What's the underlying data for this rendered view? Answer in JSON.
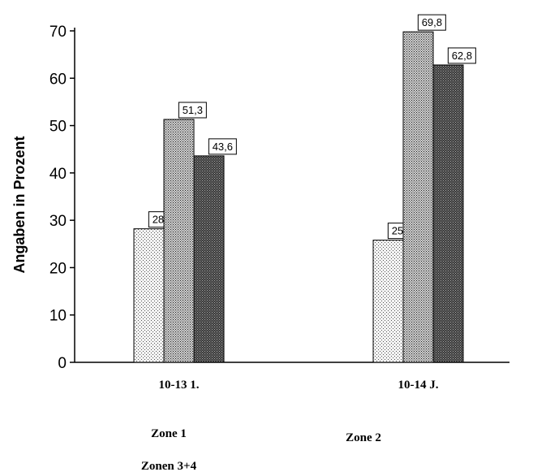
{
  "chart_data": {
    "type": "bar",
    "title": "",
    "xlabel": "",
    "ylabel": "Angaben in Prozent",
    "ylim": [
      0,
      70
    ],
    "yticks": [
      0,
      10,
      20,
      30,
      40,
      50,
      60,
      70
    ],
    "categories": [
      "10-13 1.",
      "10-14 J."
    ],
    "series": [
      {
        "name": "Zone 1",
        "values": [
          28.2,
          25.8
        ],
        "labels": [
          "28,2",
          "25,8"
        ]
      },
      {
        "name": "Zone 2",
        "values": [
          51.3,
          69.8
        ],
        "labels": [
          "51,3",
          "69,8"
        ]
      },
      {
        "name": "Zonen 3+4",
        "values": [
          43.6,
          62.8
        ],
        "labels": [
          "43,6",
          "62,8"
        ]
      }
    ],
    "grid": false,
    "legend": "bottom"
  }
}
